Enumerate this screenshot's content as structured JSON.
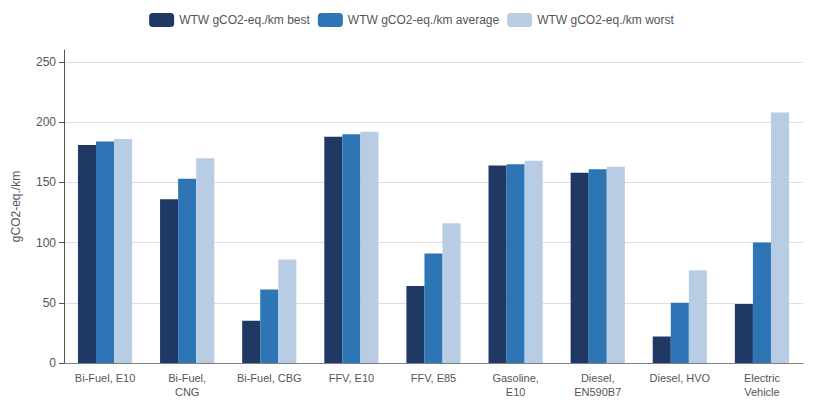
{
  "chart_data": {
    "type": "bar",
    "ylabel": "gCO2-eq./km",
    "categories": [
      "Bi-Fuel, E10",
      "Bi-Fuel,\nCNG",
      "Bi-Fuel, CBG",
      "FFV, E10",
      "FFV, E85",
      "Gasoline,\nE10",
      "Diesel,\nEN590B7",
      "Diesel, HVO",
      "Electric\nVehicle"
    ],
    "series": [
      {
        "name": "WTW gCO2-eq./km best",
        "color": "#1f3864",
        "values": [
          181,
          136,
          35,
          188,
          64,
          164,
          158,
          22,
          49
        ]
      },
      {
        "name": "WTW gCO2-eq./km average",
        "color": "#2e75b6",
        "values": [
          184,
          153,
          61,
          190,
          91,
          165,
          161,
          50,
          100
        ]
      },
      {
        "name": "WTW gCO2-eq./km worst",
        "color": "#b8cce4",
        "values": [
          186,
          170,
          86,
          192,
          116,
          168,
          163,
          77,
          208
        ]
      }
    ],
    "ylim": [
      0,
      260
    ],
    "yticks": [
      0,
      50,
      100,
      150,
      200,
      250
    ],
    "grid": true,
    "legend": "top"
  }
}
